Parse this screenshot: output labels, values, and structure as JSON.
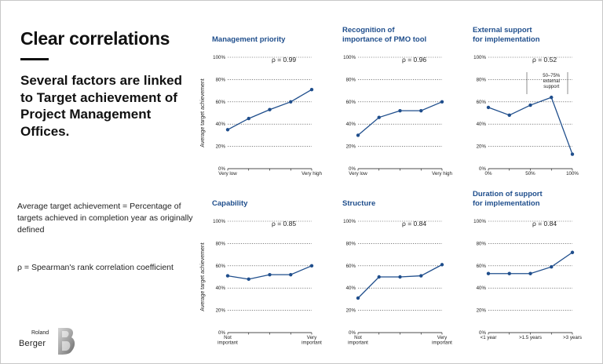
{
  "slide": {
    "headline": "Clear correlations",
    "subheadline": "Several factors are linked to Target achievement of Project Management Offices.",
    "definition": "Average target achievement = Percentage of targets achieved in completion year as originally defined",
    "rho_definition": "ρ = Spearman's rank correlation coefficient",
    "logo_small": "Roland",
    "logo_big": "Berger",
    "logo_mark": "B"
  },
  "colors": {
    "line": "#1f4e8c",
    "title": "#1f4e8c",
    "grid": "#333333",
    "text": "#111111"
  },
  "chart_data": [
    {
      "type": "line",
      "title": [
        "Management priority"
      ],
      "rho": "ρ = 0.99",
      "ylabel": "Average target achievement",
      "ylim": [
        0,
        100
      ],
      "yticks": [
        "0%",
        "20%",
        "40%",
        "60%",
        "80%",
        "100%"
      ],
      "xticks": [
        [
          "Very low"
        ],
        [],
        [],
        [],
        [
          "Very high"
        ]
      ],
      "values": [
        35,
        45,
        53,
        60,
        71
      ]
    },
    {
      "type": "line",
      "title": [
        "Recognition of",
        "importance of PMO tool"
      ],
      "rho": "ρ = 0.96",
      "ylabel": "",
      "ylim": [
        0,
        100
      ],
      "yticks": [
        "0%",
        "20%",
        "40%",
        "60%",
        "80%",
        "100%"
      ],
      "xticks": [
        [
          "Very low"
        ],
        [],
        [],
        [],
        [
          "Very high"
        ]
      ],
      "values": [
        30,
        46,
        52,
        52,
        60
      ]
    },
    {
      "type": "line",
      "title": [
        "External support",
        "for implementation"
      ],
      "rho": "ρ = 0.52",
      "ylabel": "",
      "ylim": [
        0,
        100
      ],
      "yticks": [
        "0%",
        "20%",
        "40%",
        "60%",
        "80%",
        "100%"
      ],
      "xticks": [
        [
          "0%"
        ],
        [],
        [
          "50%"
        ],
        [],
        [
          "100%"
        ]
      ],
      "values": [
        55,
        48,
        57,
        64,
        13
      ],
      "annotation": [
        "50–75%",
        "external",
        "support"
      ]
    },
    {
      "type": "line",
      "title": [
        "Capability"
      ],
      "rho": "ρ = 0.85",
      "ylabel": "Average target achievement",
      "ylim": [
        0,
        100
      ],
      "yticks": [
        "0%",
        "20%",
        "40%",
        "60%",
        "80%",
        "100%"
      ],
      "xticks": [
        [
          "Not",
          "important"
        ],
        [],
        [],
        [],
        [
          "Very",
          "important"
        ]
      ],
      "values": [
        51,
        48,
        52,
        52,
        60
      ]
    },
    {
      "type": "line",
      "title": [
        "Structure"
      ],
      "rho": "ρ = 0.84",
      "ylabel": "",
      "ylim": [
        0,
        100
      ],
      "yticks": [
        "0%",
        "20%",
        "40%",
        "60%",
        "80%",
        "100%"
      ],
      "xticks": [
        [
          "Not",
          "important"
        ],
        [],
        [],
        [],
        [
          "Very",
          "important"
        ]
      ],
      "values": [
        31,
        50,
        50,
        51,
        61
      ]
    },
    {
      "type": "line",
      "title": [
        "Duration of support",
        "for implementation"
      ],
      "rho": "ρ = 0.84",
      "ylabel": "",
      "ylim": [
        0,
        100
      ],
      "yticks": [
        "0%",
        "20%",
        "40%",
        "60%",
        "80%",
        "100%"
      ],
      "xticks": [
        [
          "<1 year"
        ],
        [],
        [
          ">1.5 years"
        ],
        [],
        [
          ">3 years"
        ]
      ],
      "values": [
        53,
        53,
        53,
        59,
        72
      ]
    }
  ]
}
